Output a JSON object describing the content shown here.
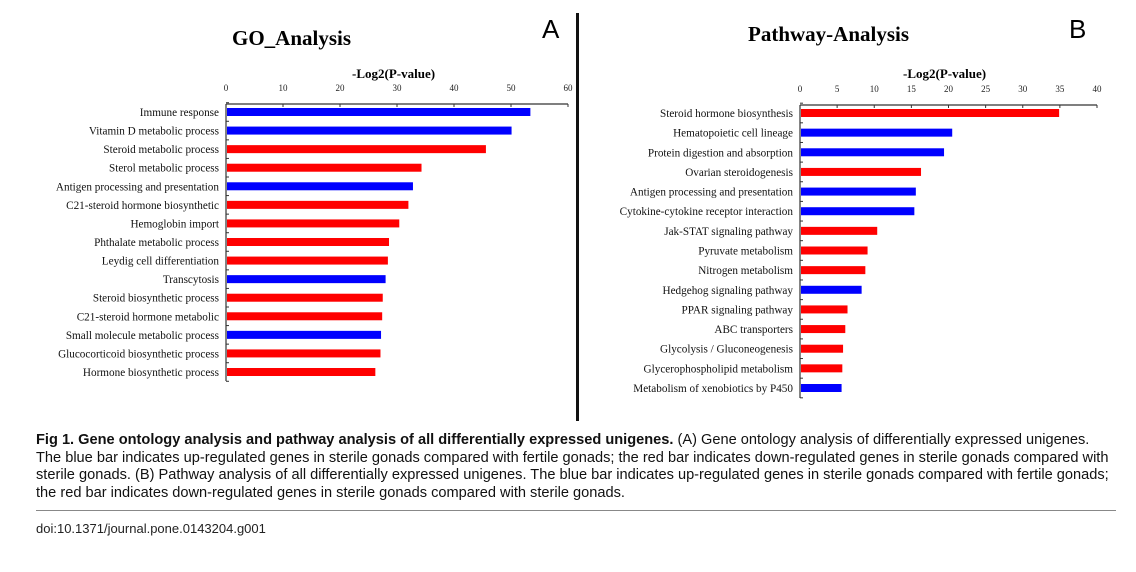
{
  "chart_data": [
    {
      "type": "bar",
      "orientation": "horizontal",
      "panel_letter": "A",
      "title": "GO_Analysis",
      "xlabel": "-Log2(P-value)",
      "ylabel": "",
      "xlim": [
        0,
        60
      ],
      "xticks": [
        0,
        10,
        20,
        30,
        40,
        50,
        60
      ],
      "grid": false,
      "legend": "none",
      "categories": [
        "Immune response",
        "Vitamin D metabolic process",
        "Steroid metabolic process",
        "Sterol metabolic process",
        "Antigen processing and presentation",
        "C21-steroid hormone biosynthetic",
        "Hemoglobin import",
        "Phthalate metabolic process",
        "Leydig cell differentiation",
        "Transcytosis",
        "Steroid biosynthetic process",
        "C21-steroid hormone metabolic",
        "Small molecule metabolic process",
        "Glucocorticoid biosynthetic process",
        "Hormone biosynthetic process"
      ],
      "values": [
        53.4,
        50.1,
        45.6,
        34.3,
        32.8,
        32.0,
        30.4,
        28.6,
        28.4,
        28.0,
        27.5,
        27.4,
        27.2,
        27.1,
        26.2
      ],
      "regulation": [
        "up",
        "up",
        "down",
        "down",
        "up",
        "down",
        "down",
        "down",
        "down",
        "up",
        "down",
        "down",
        "up",
        "down",
        "down"
      ]
    },
    {
      "type": "bar",
      "orientation": "horizontal",
      "panel_letter": "B",
      "title": "Pathway-Analysis",
      "xlabel": "-Log2(P-value)",
      "ylabel": "",
      "xlim": [
        0,
        40
      ],
      "xticks": [
        0,
        5,
        10,
        15,
        20,
        25,
        30,
        35,
        40
      ],
      "grid": false,
      "legend": "none",
      "categories": [
        "Steroid hormone biosynthesis",
        "Hematopoietic cell lineage",
        "Protein digestion and absorption",
        "Ovarian steroidogenesis",
        "Antigen processing and presentation",
        "Cytokine-cytokine receptor interaction",
        "Jak-STAT signaling pathway",
        "Pyruvate metabolism",
        "Nitrogen metabolism",
        "Hedgehog signaling pathway",
        "PPAR signaling pathway",
        "ABC transporters",
        "Glycolysis / Gluconeogenesis",
        "Glycerophospholipid metabolism",
        "Metabolism of xenobiotics by P450"
      ],
      "values": [
        34.9,
        20.5,
        19.4,
        16.3,
        15.6,
        15.4,
        10.4,
        9.1,
        8.8,
        8.3,
        6.4,
        6.1,
        5.8,
        5.7,
        5.6
      ],
      "regulation": [
        "down",
        "up",
        "up",
        "down",
        "up",
        "up",
        "down",
        "down",
        "down",
        "up",
        "down",
        "down",
        "down",
        "down",
        "up"
      ]
    }
  ],
  "colors": {
    "up": "#0000ff",
    "down": "#ff0000"
  },
  "caption": {
    "bold": "Fig 1. Gene ontology analysis and pathway analysis of all differentially expressed unigenes.",
    "text": " (A) Gene ontology analysis of differentially expressed unigenes. The blue bar indicates up-regulated genes in sterile gonads compared with fertile gonads; the red bar indicates down-regulated genes in sterile gonads compared with sterile gonads. (B) Pathway analysis of all differentially expressed unigenes. The blue bar indicates up-regulated genes in sterile gonads compared with fertile gonads; the red bar indicates down-regulated genes in sterile gonads compared with sterile gonads."
  },
  "doi": "doi:10.1371/journal.pone.0143204.g001"
}
